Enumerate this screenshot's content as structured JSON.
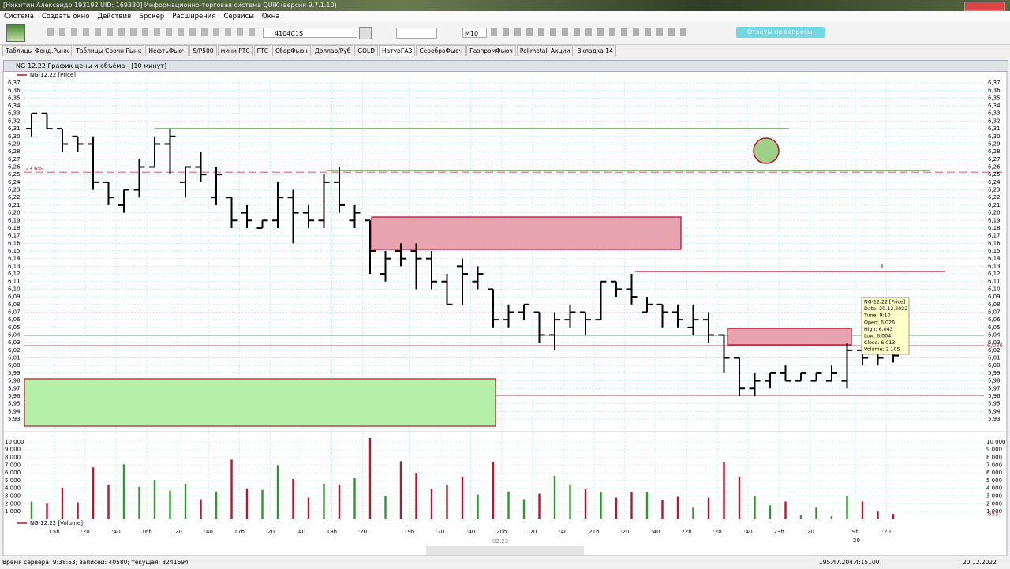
{
  "window": {
    "title": "[Никитин Александр 193192 UID: 169330] Информационно-торговая система QUIK (версия 9.7.1.10)",
    "menu": [
      "Система",
      "Создать окно",
      "Действия",
      "Брокер",
      "Расширения",
      "Сервисы",
      "Окна"
    ],
    "toolbar": {
      "instrument": "4104C1S",
      "interval": "M10",
      "help": "Ответы на вопросы"
    },
    "tabs": [
      "Таблицы Фонд.Рынк",
      "Таблицы Срочн Рынк",
      "НефтьФьюч",
      "S/P500",
      "мини РТС",
      "РТС",
      "СберФьюч",
      "Доллар/Руб",
      "GOLD",
      "НатурГАЗ",
      "СереброФьюч",
      "ГазпромФьюч",
      "Polimetall Акции",
      "Вкладка 14"
    ],
    "active_tab": "НатурГАЗ",
    "chart_window_title": "NG-12.22 График цены и объёма - [10 минут]"
  },
  "chart_data": [
    {
      "type": "ohlc",
      "name": "NG-12.22 [Price]",
      "color": "#000000",
      "open": [
        6.31,
        6.33,
        6.31,
        6.3,
        6.29,
        6.24,
        6.21,
        6.23,
        6.26,
        6.29,
        6.24,
        6.26,
        6.22,
        6.22,
        6.2,
        6.18,
        6.19,
        6.22,
        6.2,
        6.19,
        6.24,
        6.19,
        6.19,
        6.12,
        6.15,
        6.15,
        6.14,
        6.11,
        6.13,
        6.11,
        6.1,
        6.06,
        6.07,
        6.07,
        6.04,
        6.06,
        6.07,
        6.06,
        6.11,
        6.1,
        6.07,
        6.08,
        6.07,
        6.05,
        6.06,
        6.04,
        6.01,
        5.97,
        5.98,
        5.99,
        5.98,
        5.98,
        5.98,
        5.98,
        6.02,
        6.02,
        6.026
      ],
      "high": [
        6.33,
        6.33,
        6.31,
        6.3,
        6.3,
        6.24,
        6.23,
        6.27,
        6.3,
        6.31,
        6.26,
        6.28,
        6.26,
        6.22,
        6.21,
        6.19,
        6.24,
        6.23,
        6.21,
        6.25,
        6.26,
        6.21,
        6.19,
        6.15,
        6.16,
        6.16,
        6.15,
        6.12,
        6.14,
        6.13,
        6.1,
        6.08,
        6.08,
        6.07,
        6.07,
        6.08,
        6.07,
        6.11,
        6.11,
        6.12,
        6.09,
        6.08,
        6.08,
        6.08,
        6.07,
        6.04,
        6.01,
        5.99,
        5.99,
        6.0,
        5.99,
        5.99,
        6.0,
        6.03,
        6.02,
        6.02,
        6.043
      ],
      "low": [
        6.3,
        6.31,
        6.28,
        6.28,
        6.23,
        6.21,
        6.2,
        6.22,
        6.26,
        6.25,
        6.22,
        6.24,
        6.21,
        6.18,
        6.18,
        6.18,
        6.18,
        6.16,
        6.18,
        6.18,
        6.2,
        6.18,
        6.12,
        6.11,
        6.13,
        6.1,
        6.1,
        6.08,
        6.08,
        6.1,
        6.05,
        6.05,
        6.06,
        6.03,
        6.02,
        6.05,
        6.04,
        6.06,
        6.09,
        6.08,
        6.07,
        6.05,
        6.05,
        6.04,
        6.03,
        5.99,
        5.96,
        5.96,
        5.97,
        5.98,
        5.98,
        5.98,
        5.98,
        5.97,
        6.0,
        6.0,
        6.004
      ],
      "close": [
        6.33,
        6.31,
        6.29,
        6.29,
        6.24,
        6.22,
        6.23,
        6.26,
        6.29,
        6.3,
        6.26,
        6.25,
        6.25,
        6.19,
        6.19,
        6.19,
        6.22,
        6.2,
        6.19,
        6.24,
        6.21,
        6.2,
        6.15,
        6.14,
        6.14,
        6.14,
        6.11,
        6.08,
        6.12,
        6.12,
        6.06,
        6.07,
        6.08,
        6.04,
        6.06,
        6.07,
        6.06,
        6.11,
        6.1,
        6.09,
        6.08,
        6.07,
        6.06,
        6.06,
        6.04,
        6.01,
        5.97,
        5.98,
        5.99,
        5.98,
        5.99,
        5.99,
        5.99,
        6.02,
        6.01,
        6.01,
        6.013
      ],
      "ylim": [
        5.93,
        6.37
      ],
      "yticks": [
        {
          "value": 6.37,
          "label": "6,37"
        },
        {
          "value": 6.36,
          "label": "6,36"
        },
        {
          "value": 6.35,
          "label": "6,35"
        },
        {
          "value": 6.34,
          "label": "6,34"
        },
        {
          "value": 6.33,
          "label": "6,33"
        },
        {
          "value": 6.32,
          "label": "6,32"
        },
        {
          "value": 6.31,
          "label": "6,31"
        },
        {
          "value": 6.3,
          "label": "6,30"
        },
        {
          "value": 6.29,
          "label": "6,29"
        },
        {
          "value": 6.28,
          "label": "6,28"
        },
        {
          "value": 6.27,
          "label": "6,27"
        },
        {
          "value": 6.26,
          "label": "6,26"
        },
        {
          "value": 6.25,
          "label": "6,25"
        },
        {
          "value": 6.24,
          "label": "6,24"
        },
        {
          "value": 6.23,
          "label": "6,23"
        },
        {
          "value": 6.22,
          "label": "6,22"
        },
        {
          "value": 6.21,
          "label": "6,21"
        },
        {
          "value": 6.2,
          "label": "6,20"
        },
        {
          "value": 6.19,
          "label": "6,19"
        },
        {
          "value": 6.18,
          "label": "6,18"
        },
        {
          "value": 6.17,
          "label": "6,17"
        },
        {
          "value": 6.16,
          "label": "6,16"
        },
        {
          "value": 6.15,
          "label": "6,15"
        },
        {
          "value": 6.14,
          "label": "6,14"
        },
        {
          "value": 6.13,
          "label": "6,13"
        },
        {
          "value": 6.12,
          "label": "6,12"
        },
        {
          "value": 6.11,
          "label": "6,11"
        },
        {
          "value": 6.1,
          "label": "6,10"
        },
        {
          "value": 6.09,
          "label": "6,09"
        },
        {
          "value": 6.08,
          "label": "6,08"
        },
        {
          "value": 6.07,
          "label": "6,07"
        },
        {
          "value": 6.06,
          "label": "6,06"
        },
        {
          "value": 6.05,
          "label": "6,05"
        },
        {
          "value": 6.04,
          "label": "6,04"
        },
        {
          "value": 6.03,
          "label": "6,03"
        },
        {
          "value": 6.02,
          "label": "6,02"
        },
        {
          "value": 6.01,
          "label": "6,01"
        },
        {
          "value": 6.0,
          "label": "6,00"
        },
        {
          "value": 5.99,
          "label": "5,99"
        },
        {
          "value": 5.98,
          "label": "5,98"
        },
        {
          "value": 5.97,
          "label": "5,97"
        },
        {
          "value": 5.96,
          "label": "5,96"
        },
        {
          "value": 5.95,
          "label": "5,95"
        },
        {
          "value": 5.94,
          "label": "5,94"
        },
        {
          "value": 5.93,
          "label": "5,93"
        }
      ],
      "grid": true,
      "last_price": {
        "value": 6.026,
        "label": "6,026"
      },
      "fib": {
        "label": "23.6%",
        "price": 6.253
      },
      "tooltip": [
        "NG-12.22 [Price]",
        "Date: 20.12.2022",
        "Time: 9:10",
        "Open:  6,026",
        "High:  6,043",
        "Low:   6,004",
        "Close: 6,013",
        "Volume: 2 105"
      ]
    },
    {
      "type": "bar",
      "name": "NG-12.22 [Volume]",
      "up_color": "#2a9a2a",
      "down_color": "#b8142e",
      "values": [
        2300,
        2000,
        4100,
        2200,
        6700,
        4500,
        7100,
        4200,
        5100,
        3700,
        4600,
        2600,
        3600,
        7700,
        4000,
        3800,
        7000,
        5200,
        2800,
        4600,
        4500,
        5300,
        10500,
        3000,
        7500,
        6000,
        3900,
        4500,
        5500,
        3200,
        7400,
        3600,
        2600,
        3300,
        5600,
        4500,
        3900,
        3500,
        2800,
        3500,
        3500,
        2500,
        2900,
        1500,
        2800,
        7400,
        5500,
        3000,
        1800,
        2300,
        500,
        1500,
        400,
        3000,
        2300,
        1000,
        700
      ],
      "ylim": [
        0,
        10700
      ],
      "yticks": [
        {
          "value": 10000,
          "label": "10 000"
        },
        {
          "value": 9000,
          "label": "9 000"
        },
        {
          "value": 8000,
          "label": "8 000"
        },
        {
          "value": 7000,
          "label": "7 000"
        },
        {
          "value": 6000,
          "label": "6 000"
        },
        {
          "value": 5000,
          "label": "5 000"
        },
        {
          "value": 4000,
          "label": "4 000"
        },
        {
          "value": 3000,
          "label": "3 000"
        },
        {
          "value": 2000,
          "label": "2 000"
        },
        {
          "value": 1000,
          "label": "1 000"
        }
      ],
      "last_volume": 653
    }
  ],
  "time_axis": [
    "15h",
    ":20",
    ":40",
    "16h",
    ":20",
    ":40",
    "17h",
    ":20",
    ":40",
    "18h",
    ":20",
    "19h",
    ":20",
    ":40",
    "20h",
    ":20",
    ":40",
    "21h",
    ":20",
    ":40",
    "22h",
    ":20",
    ":40",
    "23h",
    ":20",
    "9h",
    ":20"
  ],
  "date_label": "20",
  "status_bar": {
    "server": "Время сервера: 9:38:53; записей: 40580; текущая: 3241694",
    "connection": "195.47.204.4:15100",
    "date": "20.12.2022"
  },
  "player_time": "02:23"
}
